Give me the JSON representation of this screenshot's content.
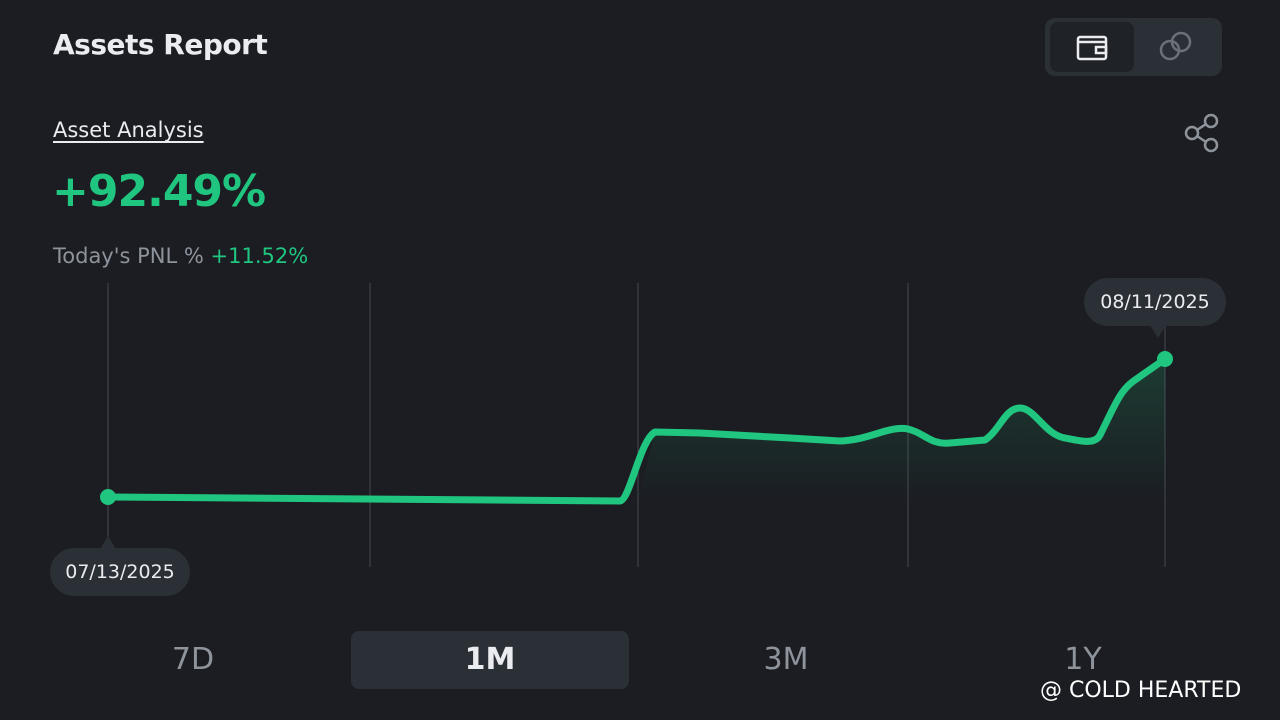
{
  "header": {
    "title": "Assets Report"
  },
  "analysis": {
    "link": "Asset Analysis",
    "value": "+92.49%",
    "pnl_label": "Today's PNL %",
    "pnl_value": "+11.52%"
  },
  "chart": {
    "start_date": "07/13/2025",
    "end_date": "08/11/2025"
  },
  "tabs": {
    "items": [
      "7D",
      "1M",
      "3M",
      "1Y"
    ],
    "active_index": 1
  },
  "watermark": "@ COLD HEARTED"
}
